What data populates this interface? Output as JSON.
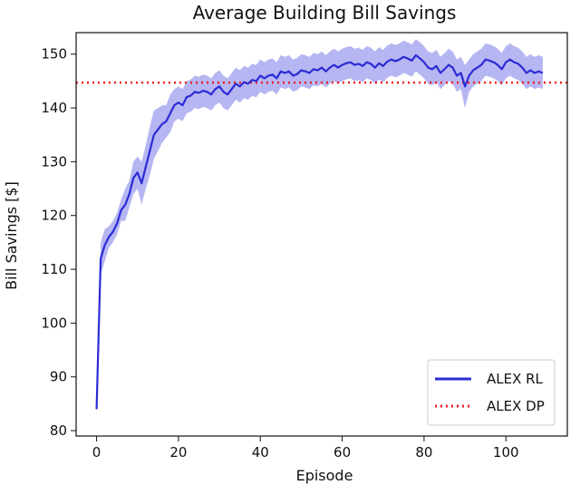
{
  "chart_data": {
    "type": "line",
    "title": "Average Building Bill Savings",
    "xlabel": "Episode",
    "ylabel": "Bill Savings [$]",
    "xlim": [
      -5,
      115
    ],
    "ylim": [
      79,
      154
    ],
    "xticks": [
      0,
      20,
      40,
      60,
      80,
      100
    ],
    "yticks": [
      80,
      90,
      100,
      110,
      120,
      130,
      140,
      150
    ],
    "grid": false,
    "legend_position": "lower-right",
    "series": [
      {
        "name": "ALEX RL",
        "style": "solid",
        "color": "#2b2bd6",
        "band_color": "#7a7ae8",
        "x": [
          0,
          1,
          2,
          3,
          4,
          5,
          6,
          7,
          8,
          9,
          10,
          11,
          12,
          13,
          14,
          15,
          16,
          17,
          18,
          19,
          20,
          21,
          22,
          23,
          24,
          25,
          26,
          27,
          28,
          29,
          30,
          31,
          32,
          33,
          34,
          35,
          36,
          37,
          38,
          39,
          40,
          41,
          42,
          43,
          44,
          45,
          46,
          47,
          48,
          49,
          50,
          51,
          52,
          53,
          54,
          55,
          56,
          57,
          58,
          59,
          60,
          61,
          62,
          63,
          64,
          65,
          66,
          67,
          68,
          69,
          70,
          71,
          72,
          73,
          74,
          75,
          76,
          77,
          78,
          79,
          80,
          81,
          82,
          83,
          84,
          85,
          86,
          87,
          88,
          89,
          90,
          91,
          92,
          93,
          94,
          95,
          96,
          97,
          98,
          99,
          100,
          101,
          102,
          103,
          104,
          105,
          106,
          107,
          108,
          109
        ],
        "values": [
          84,
          112,
          114.5,
          116,
          117,
          118.5,
          121,
          122,
          124,
          127,
          128,
          126,
          129,
          132,
          135,
          136,
          137,
          137.5,
          139,
          140.5,
          141,
          140.5,
          142,
          142.3,
          143,
          142.8,
          143.2,
          143,
          142.5,
          143.5,
          144,
          143,
          142.5,
          143.5,
          144.5,
          144,
          144.8,
          144.5,
          145.2,
          145,
          146,
          145.5,
          146,
          146.2,
          145.5,
          146.8,
          146.5,
          146.8,
          146,
          146.3,
          147,
          146.8,
          146.5,
          147.2,
          147,
          147.5,
          146.8,
          147.5,
          148,
          147.5,
          148,
          148.3,
          148.5,
          148,
          148.2,
          147.8,
          148.5,
          148.2,
          147.5,
          148.3,
          147.8,
          148.6,
          149,
          148.7,
          149,
          149.5,
          149.2,
          148.8,
          149.8,
          149.2,
          148.5,
          147.5,
          147.2,
          147.8,
          146.5,
          147.2,
          148,
          147.5,
          146,
          146.5,
          144,
          146,
          147,
          147.5,
          148,
          149,
          148.8,
          148.5,
          148,
          147.2,
          148.5,
          149,
          148.5,
          148.2,
          147.5,
          146.5,
          147,
          146.5,
          146.8,
          146.5
        ],
        "band_half_width": [
          1.5,
          3,
          3,
          2,
          2,
          2,
          2,
          3,
          2.5,
          3,
          3,
          4,
          4,
          4.5,
          4.5,
          4,
          3.5,
          3,
          3.5,
          3,
          3,
          3,
          3,
          3,
          3,
          3,
          3,
          3,
          3,
          3,
          3,
          3,
          3,
          3,
          3,
          3,
          3,
          3,
          3,
          3,
          3,
          3,
          3,
          3,
          3,
          3,
          3,
          3,
          3,
          3,
          3,
          3,
          3,
          3,
          3,
          3,
          3,
          3,
          3,
          3,
          3,
          3,
          3,
          3,
          3,
          3,
          3,
          3,
          3,
          3,
          3,
          3,
          3,
          3,
          3,
          3,
          3,
          3,
          3,
          3,
          3,
          3,
          3,
          3,
          3,
          3,
          3,
          3,
          3,
          3,
          4,
          3,
          3,
          3,
          3,
          3,
          3,
          3,
          3,
          3,
          3,
          3,
          3,
          3,
          3,
          3,
          3,
          3,
          3,
          3
        ]
      },
      {
        "name": "ALEX DP",
        "style": "dotted",
        "color": "#ee1c1c",
        "constant": 144.7
      }
    ]
  }
}
